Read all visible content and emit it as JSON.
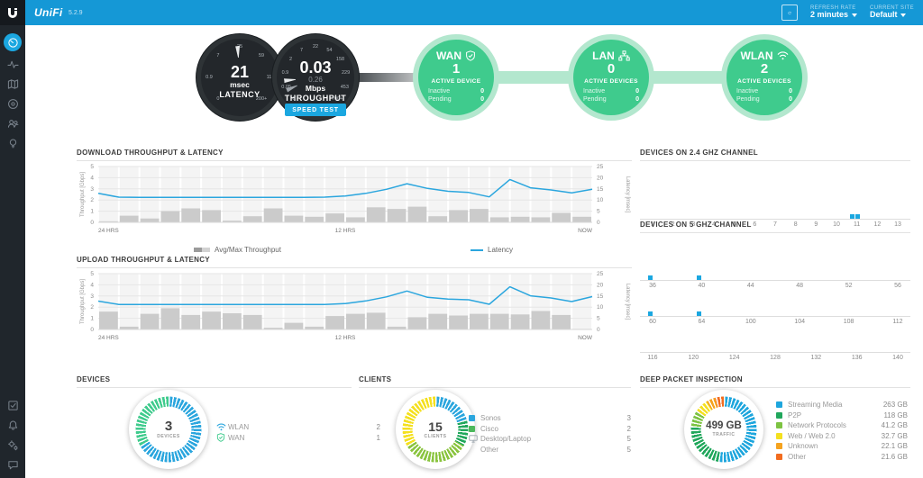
{
  "header": {
    "brand": "UniFi",
    "version": "5.2.9",
    "refresh_rate_label": "REFRESH RATE",
    "refresh_rate_value": "2 minutes",
    "current_site_label": "CURRENT SITE",
    "current_site_value": "Default"
  },
  "sidebar": {
    "top": [
      "dashboard",
      "statistics",
      "map",
      "devices",
      "clients",
      "insights"
    ],
    "bottom": [
      "events",
      "alerts",
      "settings",
      "chat"
    ]
  },
  "hero": {
    "latency_gauge": {
      "ticks": [
        "0",
        "0.9",
        "7",
        "25",
        "59",
        "116",
        "200+"
      ],
      "needles": [
        -4
      ],
      "value": "21",
      "unit": "msec",
      "label": "LATENCY"
    },
    "throughput_gauge": {
      "ticks": [
        "0",
        "0.05",
        "0.9",
        "2",
        "7",
        "22",
        "54",
        "158",
        "229",
        "453",
        "700+"
      ],
      "needles": [
        -96,
        -114
      ],
      "value": "0.03",
      "secondary": "0.26",
      "unit": "Mbps",
      "label": "THROUGHPUT",
      "speed_test_label": "SPEED TEST"
    },
    "nodes": [
      {
        "title": "WAN",
        "icon": "shield",
        "count": "1",
        "count_label": "ACTIVE DEVICE",
        "rows": [
          {
            "label": "Inactive",
            "value": "0"
          },
          {
            "label": "Pending",
            "value": "0"
          }
        ]
      },
      {
        "title": "LAN",
        "icon": "lan",
        "count": "0",
        "count_label": "ACTIVE DEVICES",
        "rows": [
          {
            "label": "Inactive",
            "value": "0"
          },
          {
            "label": "Pending",
            "value": "0"
          }
        ]
      },
      {
        "title": "WLAN",
        "icon": "wifi",
        "count": "2",
        "count_label": "ACTIVE DEVICES",
        "rows": [
          {
            "label": "Inactive",
            "value": "0"
          },
          {
            "label": "Pending",
            "value": "0"
          }
        ]
      }
    ]
  },
  "download_chart": {
    "title": "DOWNLOAD THROUGHPUT & LATENCY",
    "legend": {
      "bars": "Avg/Max Throughput",
      "line": "Latency"
    },
    "chart_data": {
      "type": "bar+line",
      "ylabel": "Throughput [Gbps]",
      "y2label": "Latency [msec]",
      "ylim": [
        0,
        5
      ],
      "y2lim": [
        0,
        25
      ],
      "yticks": [
        0,
        1,
        2,
        3,
        4,
        5
      ],
      "y2ticks": [
        0,
        5,
        10,
        15,
        20,
        25
      ],
      "x_labels": [
        "24 HRS",
        "12 HRS",
        "NOW"
      ],
      "bars_gbps": [
        0.1,
        0.6,
        0.35,
        1.0,
        1.25,
        1.1,
        0.15,
        0.55,
        1.25,
        0.6,
        0.5,
        0.8,
        0.45,
        1.35,
        1.2,
        1.4,
        0.55,
        1.1,
        1.2,
        0.45,
        0.5,
        0.45,
        0.85,
        0.5
      ],
      "latency_msec": [
        13.0,
        11.3,
        11.2,
        11.2,
        11.2,
        11.2,
        11.2,
        11.2,
        11.2,
        11.2,
        11.2,
        11.3,
        11.8,
        13.0,
        14.8,
        17.3,
        15.2,
        13.9,
        13.4,
        11.4,
        19.2,
        15.5,
        14.5,
        13.2,
        14.8
      ]
    }
  },
  "upload_chart": {
    "title": "UPLOAD THROUGHPUT & LATENCY",
    "chart_data": {
      "type": "bar+line",
      "ylabel": "Throughput [Gbps]",
      "y2label": "Latency [msec]",
      "ylim": [
        0,
        5
      ],
      "y2lim": [
        0,
        25
      ],
      "yticks": [
        0,
        1,
        2,
        3,
        4,
        5
      ],
      "y2ticks": [
        0,
        5,
        10,
        15,
        20,
        25
      ],
      "x_labels": [
        "24 HRS",
        "12 HRS",
        "NOW"
      ],
      "bars_gbps": [
        1.6,
        0.25,
        1.4,
        1.9,
        1.3,
        1.6,
        1.45,
        1.3,
        0.15,
        0.6,
        0.25,
        1.2,
        1.4,
        1.5,
        0.25,
        1.1,
        1.4,
        1.25,
        1.4,
        1.4,
        1.35,
        1.65,
        1.3,
        0.05
      ],
      "latency_msec": [
        12.7,
        11.2,
        11.2,
        11.2,
        11.2,
        11.2,
        11.2,
        11.2,
        11.2,
        11.2,
        11.2,
        11.2,
        11.6,
        12.8,
        14.6,
        17.2,
        14.4,
        13.6,
        13.3,
        11.3,
        19.1,
        15.1,
        14.1,
        12.5,
        14.7
      ]
    }
  },
  "channels_24": {
    "title": "DEVICES ON 2.4 GHZ CHANNEL",
    "rows": [
      {
        "channels": [
          "1",
          "2",
          "3",
          "4",
          "5",
          "6",
          "7",
          "8",
          "9",
          "10",
          "11",
          "12",
          "13"
        ],
        "markers": [
          {
            "ch": "11",
            "n": 2
          }
        ]
      }
    ]
  },
  "channels_5": {
    "title": "DEVICES ON 5 GHZ CHANNEL",
    "rows": [
      {
        "channels": [
          "36",
          "40",
          "44",
          "48",
          "52",
          "56"
        ],
        "markers": [
          {
            "ch": "36",
            "n": 1
          },
          {
            "ch": "40",
            "n": 1
          }
        ]
      },
      {
        "channels": [
          "60",
          "64",
          "100",
          "104",
          "108",
          "112"
        ],
        "markers": [
          {
            "ch": "60",
            "n": 1
          },
          {
            "ch": "64",
            "n": 1
          }
        ]
      },
      {
        "channels": [
          "116",
          "120",
          "124",
          "128",
          "132",
          "136",
          "140"
        ],
        "markers": []
      }
    ]
  },
  "devices_panel": {
    "title": "DEVICES",
    "center_value": "3",
    "center_label": "DEVICES",
    "segments": [
      {
        "label": "WLAN",
        "value": 2,
        "color": "#2ba6de"
      },
      {
        "label": "WAN",
        "value": 1,
        "color": "#3fcb8d"
      }
    ],
    "legend": [
      {
        "icon": "wifi",
        "color": "#2ba6de",
        "label": "WLAN",
        "value": "2"
      },
      {
        "icon": "shield",
        "color": "#3fcb8d",
        "label": "WAN",
        "value": "1"
      }
    ]
  },
  "clients_panel": {
    "title": "CLIENTS",
    "center_value": "15",
    "center_label": "CLIENTS",
    "segments": [
      {
        "label": "Sonos",
        "value": 3,
        "color": "#2ba6de"
      },
      {
        "label": "Cisco",
        "value": 2,
        "color": "#21a75c"
      },
      {
        "label": "Desktop/Laptop",
        "value": 5,
        "color": "#8ac43f"
      },
      {
        "label": "Other",
        "value": 5,
        "color": "#f4e01f"
      }
    ],
    "legend": [
      {
        "icon": "square",
        "color": "#2ba6de",
        "label": "Sonos",
        "value": "3"
      },
      {
        "icon": "square",
        "color": "#4cb85c",
        "label": "Cisco",
        "value": "2"
      },
      {
        "icon": "monitor",
        "color": "#9aa4ad",
        "label": "Desktop/Laptop",
        "value": "5"
      },
      {
        "icon": "none",
        "color": "",
        "label": "Other",
        "value": "5"
      }
    ]
  },
  "dpi_panel": {
    "title": "DEEP PACKET INSPECTION",
    "center_value": "499 GB",
    "center_label": "TRAFFIC",
    "segments": [
      {
        "label": "Streaming Media",
        "value": 263,
        "color": "#1ea6dd"
      },
      {
        "label": "P2P",
        "value": 118,
        "color": "#21a75c"
      },
      {
        "label": "Network Protocols",
        "value": 41.2,
        "color": "#7dc342"
      },
      {
        "label": "Web / Web 2.0",
        "value": 32.7,
        "color": "#f4e01f"
      },
      {
        "label": "Unknown",
        "value": 22.1,
        "color": "#f5a31f"
      },
      {
        "label": "Other",
        "value": 21.6,
        "color": "#f26c1f"
      }
    ],
    "legend": [
      {
        "icon": "square",
        "color": "#1ea6dd",
        "label": "Streaming Media",
        "value": "263 GB"
      },
      {
        "icon": "square",
        "color": "#21a75c",
        "label": "P2P",
        "value": "118 GB"
      },
      {
        "icon": "square",
        "color": "#7dc342",
        "label": "Network Protocols",
        "value": "41.2 GB"
      },
      {
        "icon": "square",
        "color": "#f4e01f",
        "label": "Web / Web 2.0",
        "value": "32.7 GB"
      },
      {
        "icon": "square",
        "color": "#f5a31f",
        "label": "Unknown",
        "value": "22.1 GB"
      },
      {
        "icon": "square",
        "color": "#f26c1f",
        "label": "Other",
        "value": "21.6 GB"
      }
    ]
  }
}
